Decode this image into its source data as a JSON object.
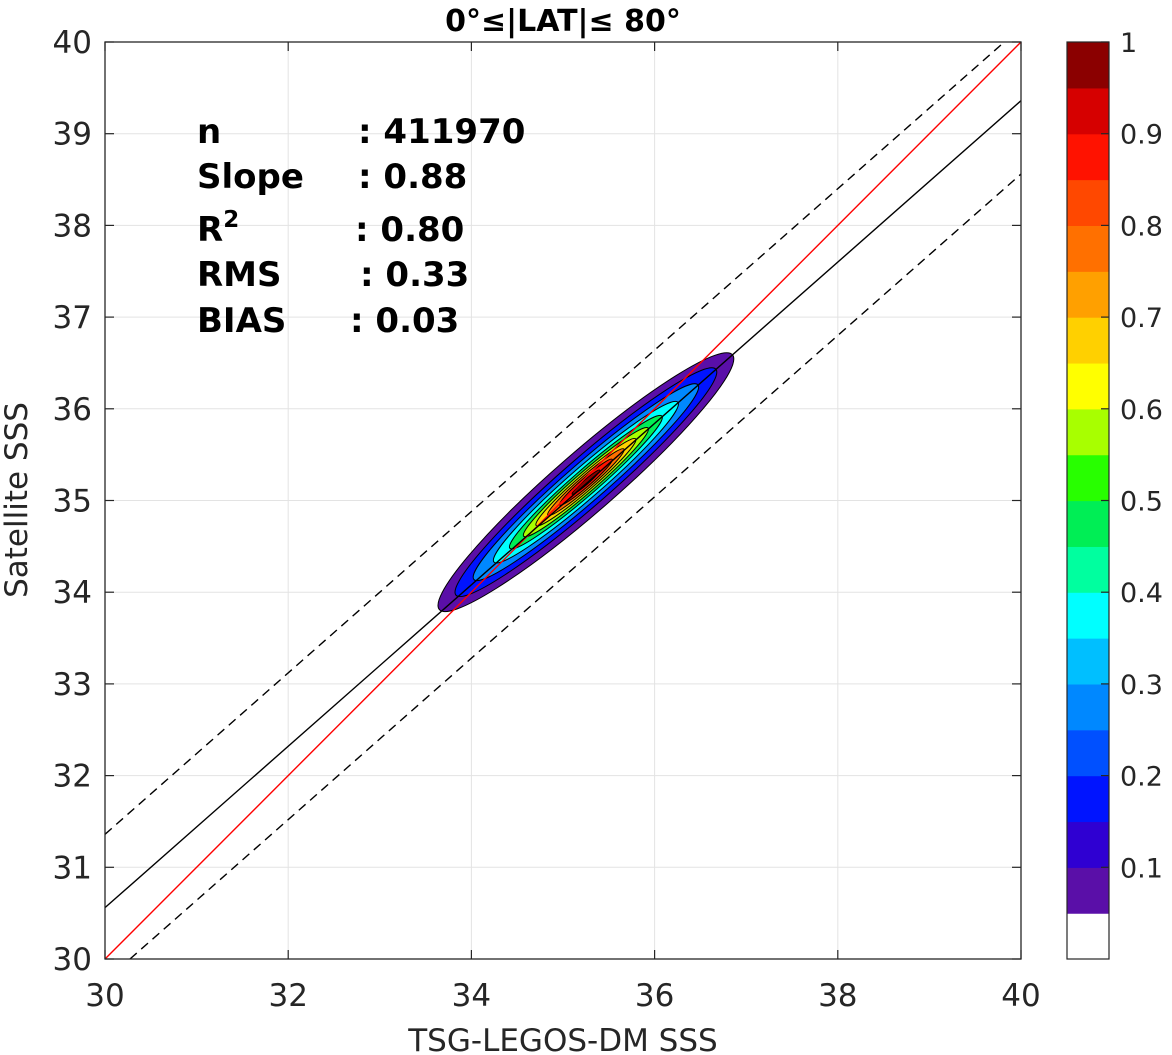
{
  "chart_data": {
    "type": "scatter",
    "title": "0°≤|LAT|≤ 80°",
    "xlabel": "TSG-LEGOS-DM SSS",
    "ylabel": "Satellite SSS",
    "xlim": [
      30,
      40
    ],
    "ylim": [
      30,
      40
    ],
    "xticks": [
      30,
      32,
      34,
      36,
      38,
      40
    ],
    "yticks": [
      30,
      31,
      32,
      33,
      34,
      35,
      36,
      37,
      38,
      39,
      40
    ],
    "grid": true,
    "stats": [
      {
        "label": "n",
        "value": ": 411970"
      },
      {
        "label": "Slope",
        "value": ": 0.88"
      },
      {
        "label": "R",
        "sup": "2",
        "value": ": 0.80"
      },
      {
        "label": "RMS",
        "value": ": 0.33"
      },
      {
        "label": "BIAS",
        "value": ": 0.03"
      }
    ],
    "lines": [
      {
        "name": "1:1",
        "color": "#ff0000",
        "style": "solid",
        "x": [
          30,
          40
        ],
        "y": [
          30,
          40
        ]
      },
      {
        "name": "fit",
        "color": "#000000",
        "style": "solid",
        "x": [
          30,
          40
        ],
        "y": [
          30.56,
          39.36
        ]
      },
      {
        "name": "fit+",
        "color": "#000000",
        "style": "dashed",
        "x": [
          30,
          40
        ],
        "y": [
          31.36,
          40.16
        ]
      },
      {
        "name": "fit-",
        "color": "#000000",
        "style": "dashed",
        "x": [
          30,
          40
        ],
        "y": [
          29.76,
          38.56
        ]
      }
    ],
    "density": {
      "center": [
        35.25,
        35.2
      ],
      "angle_deg": 41,
      "levels": [
        {
          "level": 0.05,
          "a": 2.12,
          "b": 0.33
        },
        {
          "level": 0.15,
          "a": 1.88,
          "b": 0.26
        },
        {
          "level": 0.25,
          "a": 1.62,
          "b": 0.21
        },
        {
          "level": 0.35,
          "a": 1.33,
          "b": 0.17
        },
        {
          "level": 0.45,
          "a": 1.1,
          "b": 0.135
        },
        {
          "level": 0.55,
          "a": 0.9,
          "b": 0.11
        },
        {
          "level": 0.65,
          "a": 0.72,
          "b": 0.088
        },
        {
          "level": 0.75,
          "a": 0.55,
          "b": 0.068
        },
        {
          "level": 0.85,
          "a": 0.38,
          "b": 0.048
        },
        {
          "level": 0.95,
          "a": 0.2,
          "b": 0.026
        }
      ]
    },
    "colorbar": {
      "range": [
        0,
        1
      ],
      "ticks": [
        0.1,
        0.2,
        0.3,
        0.4,
        0.5,
        0.6,
        0.7,
        0.8,
        0.9,
        1
      ],
      "tick_labels": [
        "0.1",
        "0.2",
        "0.3",
        "0.4",
        "0.5",
        "0.6",
        "0.7",
        "0.8",
        "0.9",
        "1"
      ],
      "colors": [
        "#ffffff",
        "#5a0fa8",
        "#2f00d2",
        "#0014ff",
        "#0050ff",
        "#0088ff",
        "#00bfff",
        "#00ffff",
        "#00ff9f",
        "#00ee55",
        "#28ff00",
        "#a8ff00",
        "#ffff00",
        "#ffd000",
        "#ffa000",
        "#ff7000",
        "#ff4800",
        "#ff1200",
        "#d60000",
        "#8b0000"
      ]
    }
  }
}
